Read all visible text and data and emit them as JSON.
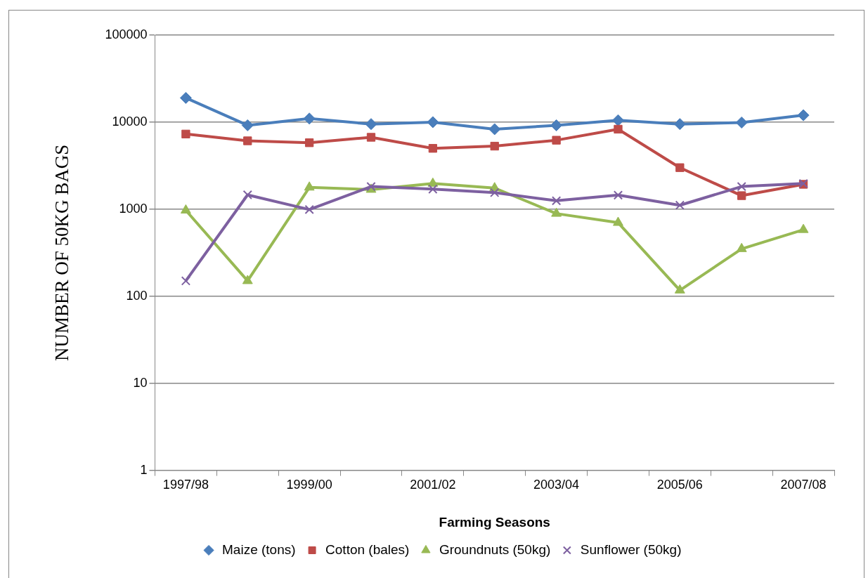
{
  "chart_data": {
    "type": "line",
    "xlabel": "Farming Seasons",
    "ylabel": "NUMBER OF 50KG BAGS",
    "categories": [
      "1997/98",
      null,
      "1999/00",
      null,
      "2001/02",
      null,
      "2003/04",
      null,
      "2005/06",
      null,
      "2007/08"
    ],
    "series": [
      {
        "name": "Maize (tons)",
        "color": "#4a7ebb",
        "marker": "diamond",
        "values": [
          19000,
          9200,
          11000,
          9500,
          10000,
          8300,
          9200,
          10500,
          9500,
          9900,
          12000
        ]
      },
      {
        "name": "Cotton (bales)",
        "color": "#be4b48",
        "marker": "square",
        "values": [
          7300,
          6100,
          5800,
          6700,
          5000,
          5300,
          6200,
          8300,
          3000,
          1430,
          1930
        ]
      },
      {
        "name": "Groundnuts (50kg)",
        "color": "#98b954",
        "marker": "triangle",
        "values": [
          970,
          150,
          1780,
          1680,
          1970,
          1750,
          890,
          700,
          117,
          350,
          580
        ]
      },
      {
        "name": "Sunflower (50kg)",
        "color": "#7d60a0",
        "marker": "cross",
        "values": [
          150,
          1460,
          990,
          1820,
          1700,
          1550,
          1250,
          1450,
          1110,
          1820,
          1970
        ]
      }
    ],
    "log": "y",
    "ylim": [
      1,
      100000
    ],
    "yticks": [
      1,
      10,
      100,
      1000,
      10000,
      100000
    ],
    "grid": "y",
    "legend": "bottom",
    "line_style": "solid"
  }
}
